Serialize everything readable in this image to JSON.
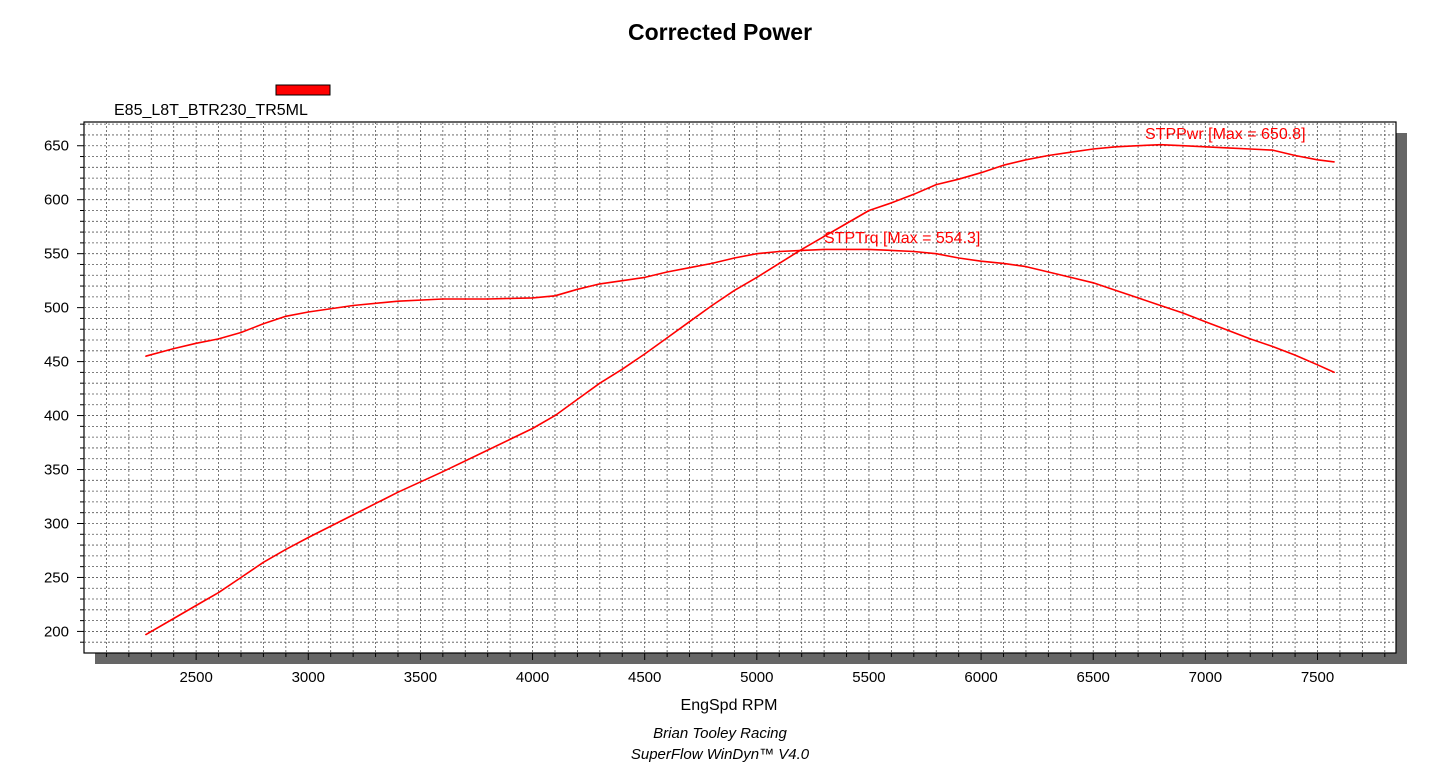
{
  "chart_data": {
    "type": "line",
    "title": "Corrected Power",
    "xlabel": "EngSpd RPM",
    "ylabel": "",
    "xlim": [
      2000,
      7850
    ],
    "ylim": [
      180,
      672
    ],
    "xticks": [
      2500,
      3000,
      3500,
      4000,
      4500,
      5000,
      5500,
      6000,
      6500,
      7000,
      7500
    ],
    "yticks": [
      200,
      250,
      300,
      350,
      400,
      450,
      500,
      550,
      600,
      650
    ],
    "grid": true,
    "legend": {
      "entries": [
        "E85_L8T_BTR230_TR5ML"
      ],
      "placement": "top-left",
      "color": "#ff0000"
    },
    "series": [
      {
        "name": "STPTrq",
        "label": "STPTrq [Max = 554.3]",
        "color": "#ff0000",
        "x": [
          2275,
          2400,
          2500,
          2600,
          2700,
          2800,
          2900,
          3000,
          3200,
          3400,
          3600,
          3800,
          4000,
          4100,
          4200,
          4300,
          4400,
          4500,
          4600,
          4700,
          4800,
          4900,
          5000,
          5100,
          5200,
          5300,
          5400,
          5500,
          5600,
          5700,
          5800,
          5900,
          6000,
          6100,
          6200,
          6300,
          6400,
          6500,
          6600,
          6700,
          6800,
          6900,
          7000,
          7100,
          7200,
          7300,
          7400,
          7500,
          7575
        ],
        "y": [
          455,
          462,
          467,
          471,
          477,
          485,
          492,
          496,
          502,
          506,
          508,
          508,
          509,
          511,
          517,
          522,
          525,
          528,
          533,
          537,
          541,
          546,
          550,
          552,
          553,
          554,
          554,
          554,
          553,
          552,
          550,
          546,
          543,
          541,
          538,
          533,
          528,
          523,
          516,
          509,
          502,
          495,
          487,
          479,
          471,
          464,
          456,
          447,
          440
        ]
      },
      {
        "name": "STPPwr",
        "label": "STPPwr [Max = 650.8]",
        "color": "#ff0000",
        "x": [
          2275,
          2400,
          2500,
          2600,
          2700,
          2800,
          2900,
          3000,
          3200,
          3400,
          3600,
          3800,
          4000,
          4100,
          4200,
          4300,
          4400,
          4500,
          4600,
          4700,
          4800,
          4900,
          5000,
          5100,
          5200,
          5300,
          5400,
          5500,
          5600,
          5700,
          5800,
          5900,
          6000,
          6100,
          6200,
          6300,
          6400,
          6500,
          6600,
          6700,
          6800,
          6900,
          7000,
          7100,
          7200,
          7300,
          7400,
          7500,
          7575
        ],
        "y": [
          197,
          212,
          224,
          236,
          250,
          264,
          276,
          287,
          308,
          329,
          348,
          368,
          388,
          400,
          415,
          430,
          443,
          457,
          472,
          487,
          502,
          516,
          528,
          541,
          554,
          566,
          578,
          590,
          597,
          605,
          614,
          619,
          625,
          632,
          637,
          641,
          644,
          647,
          649,
          650,
          651,
          650,
          649,
          648,
          647,
          646,
          641,
          637,
          635
        ]
      }
    ]
  },
  "footer": {
    "line1": "Brian Tooley Racing",
    "line2": "SuperFlow WinDyn™  V4.0"
  }
}
